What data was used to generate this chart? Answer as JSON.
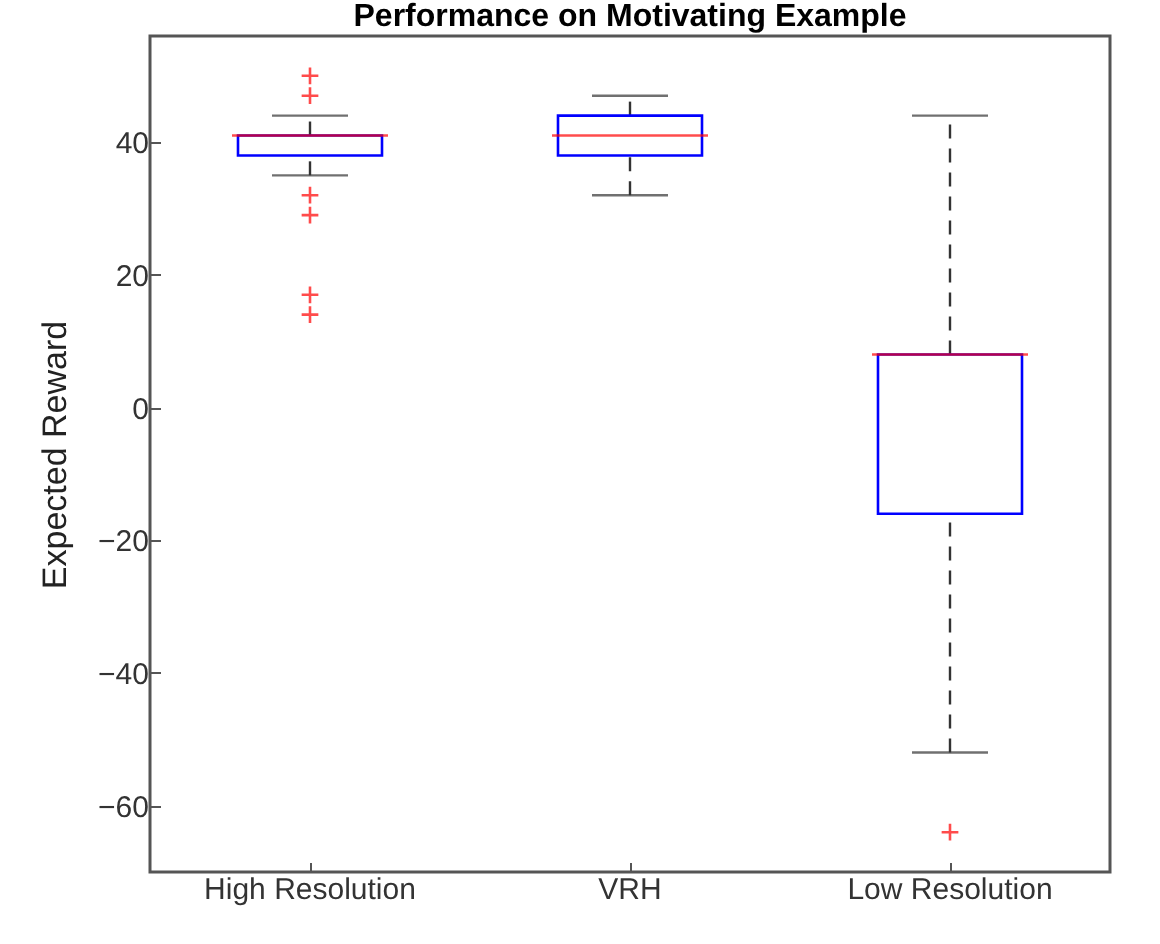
{
  "chart_data": {
    "type": "box",
    "title": "Performance on Motivating Example",
    "ylabel": "Expected Reward",
    "categories": [
      "High Resolution",
      "VRH",
      "Low Resolution"
    ],
    "series": [
      {
        "color": "#0000ff",
        "boxes": [
          {
            "low": 35,
            "q1": 38,
            "median": 41,
            "q3": 41,
            "high": 44,
            "outliers": [
              50,
              47,
              32,
              29,
              17,
              14
            ]
          },
          {
            "low": 32,
            "q1": 38,
            "median": 41,
            "q3": 44,
            "high": 47
          },
          {
            "low": -52,
            "q1": -16,
            "median": 8,
            "q3": 8,
            "high": 44,
            "outliers": [
              -64
            ]
          }
        ]
      }
    ],
    "ylim": [
      -70,
      56
    ],
    "yticks": [
      -60,
      -40,
      -20,
      0,
      20,
      40
    ],
    "grid": false
  }
}
